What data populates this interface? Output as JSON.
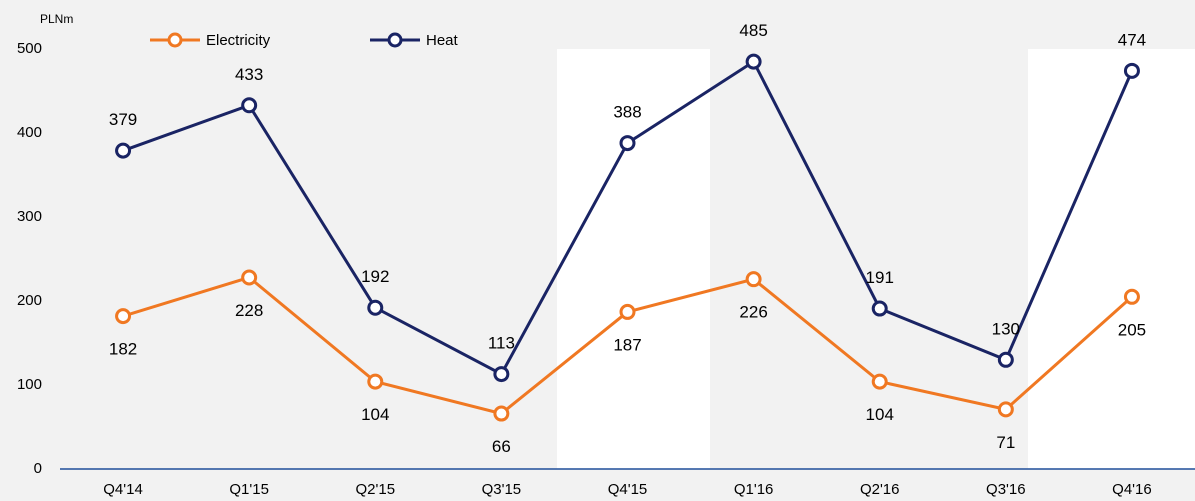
{
  "chart_data": {
    "type": "line",
    "y_axis_label": "PLNm",
    "categories": [
      "Q4'14",
      "Q1'15",
      "Q2'15",
      "Q3'15",
      "Q4'15",
      "Q1'16",
      "Q2'16",
      "Q3'16",
      "Q4'16"
    ],
    "series": [
      {
        "name": "Electricity",
        "color": "#f07822",
        "values": [
          182,
          228,
          104,
          66,
          187,
          226,
          104,
          71,
          205
        ]
      },
      {
        "name": "Heat",
        "color": "#1a2464",
        "values": [
          379,
          433,
          192,
          113,
          388,
          485,
          191,
          130,
          474
        ]
      }
    ],
    "ylim": [
      0,
      500
    ],
    "yticks": [
      0,
      100,
      200,
      300,
      400,
      500
    ],
    "grid": false
  }
}
